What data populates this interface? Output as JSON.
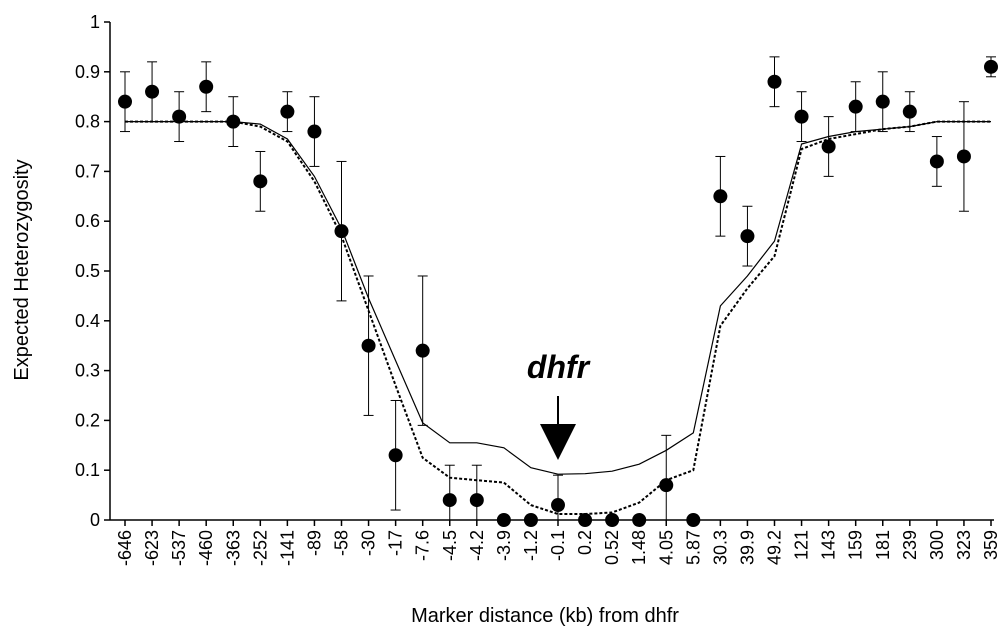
{
  "chart_data": {
    "type": "scatter",
    "xlabel": "Marker distance (kb) from dhfr",
    "ylabel": "Expected Heterozygosity",
    "ylim": [
      0,
      1
    ],
    "yticks": [
      "0",
      "0.1",
      "0.2",
      "0.3",
      "0.4",
      "0.5",
      "0.6",
      "0.7",
      "0.8",
      "0.9",
      "1"
    ],
    "grid": false,
    "legend": "none",
    "categories": [
      "-646",
      "-623",
      "-537",
      "-460",
      "-363",
      "-252",
      "-141",
      "-89",
      "-58",
      "-30",
      "-17",
      "-7.6",
      "-4.5",
      "-4.2",
      "-3.9",
      "-1.2",
      "-0.1",
      "0.2",
      "0.52",
      "1.48",
      "4.05",
      "5.87",
      "30.3",
      "39.9",
      "49.2",
      "121",
      "143",
      "159",
      "181",
      "239",
      "300",
      "323",
      "359"
    ],
    "series": [
      {
        "kind": "points",
        "values": [
          0.84,
          0.86,
          0.81,
          0.87,
          0.8,
          0.68,
          0.82,
          0.78,
          0.58,
          0.35,
          0.13,
          0.34,
          0.04,
          0.04,
          0.0,
          0.0,
          0.03,
          0.0,
          0.0,
          0.0,
          0.07,
          0.0,
          0.65,
          0.57,
          0.88,
          0.81,
          0.75,
          0.83,
          0.84,
          0.82,
          0.72,
          0.73,
          0.91
        ],
        "err_up": [
          0.06,
          0.06,
          0.05,
          0.05,
          0.05,
          0.06,
          0.04,
          0.07,
          0.14,
          0.14,
          0.11,
          0.15,
          0.07,
          0.07,
          0,
          0,
          0.06,
          0,
          0,
          0,
          0.1,
          0,
          0.08,
          0.06,
          0.05,
          0.05,
          0.06,
          0.05,
          0.06,
          0.04,
          0.05,
          0.11,
          0.02
        ],
        "err_down": [
          0.06,
          0.06,
          0.05,
          0.05,
          0.05,
          0.06,
          0.04,
          0.07,
          0.14,
          0.14,
          0.11,
          0.15,
          0.04,
          0.04,
          0,
          0,
          0.03,
          0,
          0,
          0,
          0.07,
          0,
          0.08,
          0.06,
          0.05,
          0.05,
          0.06,
          0.05,
          0.06,
          0.04,
          0.05,
          0.11,
          0.02
        ],
        "color": "#000000"
      },
      {
        "kind": "solid-line",
        "values": [
          0.8,
          0.8,
          0.8,
          0.8,
          0.8,
          0.795,
          0.765,
          0.69,
          0.585,
          0.445,
          0.32,
          0.195,
          0.155,
          0.155,
          0.145,
          0.105,
          0.092,
          0.093,
          0.098,
          0.112,
          0.14,
          0.175,
          0.43,
          0.49,
          0.56,
          0.755,
          0.77,
          0.78,
          0.785,
          0.79,
          0.8,
          0.8,
          0.8
        ],
        "color": "#000000"
      },
      {
        "kind": "dashed-line",
        "values": [
          0.8,
          0.8,
          0.8,
          0.8,
          0.8,
          0.79,
          0.76,
          0.68,
          0.57,
          0.42,
          0.27,
          0.125,
          0.085,
          0.08,
          0.075,
          0.03,
          0.012,
          0.012,
          0.015,
          0.035,
          0.08,
          0.1,
          0.39,
          0.465,
          0.53,
          0.745,
          0.765,
          0.775,
          0.785,
          0.79,
          0.8,
          0.8,
          0.8
        ],
        "color": "#000000"
      }
    ],
    "annotation": {
      "text": "dhfr",
      "at_category": "-0.1",
      "arrow": "down"
    }
  }
}
